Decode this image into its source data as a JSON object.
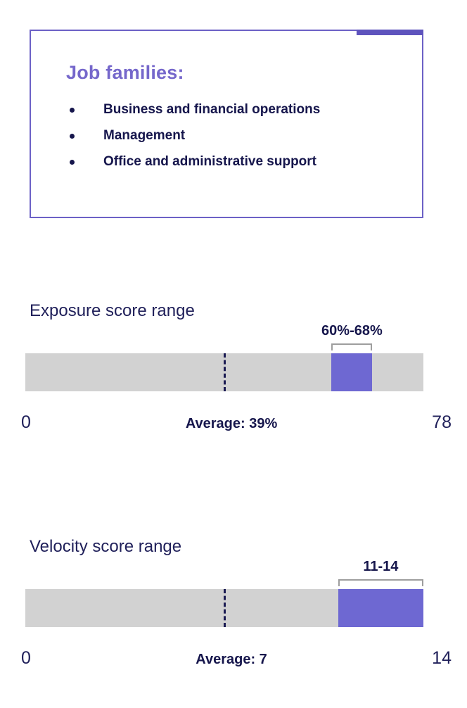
{
  "colors": {
    "accent_purple": "#6c61c6",
    "segment_purple": "#6e68d2",
    "navy": "#16164c",
    "track_gray": "#d2d2d2",
    "bracket_gray": "#9e9e9e"
  },
  "job_families": {
    "title": "Job families:",
    "items": [
      "Business and financial operations",
      "Management",
      "Office and administrative support"
    ]
  },
  "chart_data": [
    {
      "type": "bar",
      "title": "Exposure score range",
      "range_label": "60%-68%",
      "min": 0,
      "max": 78,
      "range_start": 60,
      "range_end": 68,
      "average": 39,
      "min_label": "0",
      "max_label": "78",
      "average_label": "Average: 39%",
      "xlim": [
        0,
        78
      ]
    },
    {
      "type": "bar",
      "title": "Velocity score range",
      "range_label": "11-14",
      "min": 0,
      "max": 14,
      "range_start": 11,
      "range_end": 14,
      "average": 7,
      "min_label": "0",
      "max_label": "14",
      "average_label": "Average: 7",
      "xlim": [
        0,
        14
      ]
    }
  ]
}
